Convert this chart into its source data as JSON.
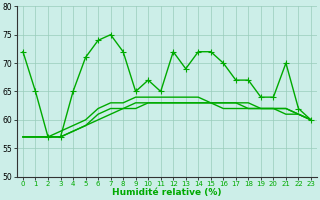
{
  "x": [
    0,
    1,
    2,
    3,
    4,
    5,
    6,
    7,
    8,
    9,
    10,
    11,
    12,
    13,
    14,
    15,
    16,
    17,
    18,
    19,
    20,
    21,
    22,
    23
  ],
  "series": [
    [
      72,
      65,
      57,
      57,
      65,
      71,
      74,
      75,
      72,
      65,
      67,
      65,
      72,
      69,
      72,
      72,
      70,
      67,
      67,
      64,
      64,
      70,
      62,
      60
    ],
    [
      57,
      57,
      57,
      57,
      58,
      59,
      60,
      61,
      62,
      62,
      63,
      63,
      63,
      63,
      63,
      63,
      63,
      63,
      63,
      62,
      62,
      61,
      61,
      60
    ],
    [
      57,
      57,
      57,
      57,
      58,
      59,
      61,
      62,
      62,
      63,
      63,
      63,
      63,
      63,
      63,
      63,
      63,
      63,
      62,
      62,
      62,
      62,
      61,
      60
    ],
    [
      57,
      57,
      57,
      58,
      59,
      60,
      62,
      63,
      63,
      64,
      64,
      64,
      64,
      64,
      64,
      63,
      62,
      62,
      62,
      62,
      62,
      62,
      61,
      60
    ]
  ],
  "markers_on": [
    true,
    false,
    false,
    false
  ],
  "xlabel": "Humidité relative (%)",
  "xlim": [
    -0.5,
    23.5
  ],
  "ylim": [
    50,
    80
  ],
  "yticks": [
    50,
    55,
    60,
    65,
    70,
    75,
    80
  ],
  "xticks": [
    0,
    1,
    2,
    3,
    4,
    5,
    6,
    7,
    8,
    9,
    10,
    11,
    12,
    13,
    14,
    15,
    16,
    17,
    18,
    19,
    20,
    21,
    22,
    23
  ],
  "line_color": "#00aa00",
  "bg_color": "#cceee8",
  "grid_color": "#99ccbb",
  "markersize": 2.0,
  "linewidth": 1.0,
  "tick_fontsize": 5.0,
  "xlabel_fontsize": 6.5
}
